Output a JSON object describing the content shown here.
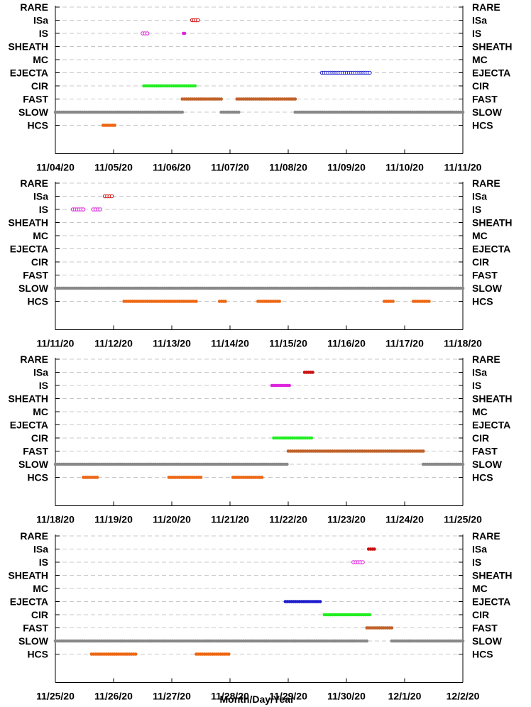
{
  "chart_data": {
    "type": "scatter",
    "xlabel": "Month/Day/Year",
    "categories": [
      "RARE",
      "ISa",
      "IS",
      "SHEATH",
      "MC",
      "EJECTA",
      "CIR",
      "FAST",
      "SLOW",
      "HCS"
    ],
    "colors": {
      "RARE": "#000000",
      "ISa": "#cc1111",
      "IS": "#dd22dd",
      "SHEATH": "#000000",
      "MC": "#000000",
      "EJECTA": "#1a1acc",
      "CIR": "#22ee22",
      "FAST": "#c0622a",
      "SLOW": "#888888",
      "HCS": "#ee6611"
    },
    "panels": [
      {
        "name": "panel-1",
        "x_range": [
          0,
          7
        ],
        "x_ticks": [
          "11/04/20",
          "11/05/20",
          "11/06/20",
          "11/07/20",
          "11/08/20",
          "11/09/20",
          "11/10/20",
          "11/11/20"
        ],
        "segments": [
          {
            "category": "ISa",
            "start": 2.35,
            "end": 2.45,
            "style": "open"
          },
          {
            "category": "IS",
            "start": 1.5,
            "end": 1.58,
            "style": "open"
          },
          {
            "category": "IS",
            "start": 2.2,
            "end": 2.22,
            "style": "filled"
          },
          {
            "category": "EJECTA",
            "start": 4.58,
            "end": 5.4,
            "style": "open"
          },
          {
            "category": "CIR",
            "start": 1.52,
            "end": 2.4,
            "style": "filled"
          },
          {
            "category": "FAST",
            "start": 2.18,
            "end": 2.85,
            "style": "filled"
          },
          {
            "category": "FAST",
            "start": 3.12,
            "end": 4.12,
            "style": "filled"
          },
          {
            "category": "SLOW",
            "start": 0.0,
            "end": 2.18,
            "style": "filled"
          },
          {
            "category": "SLOW",
            "start": 2.85,
            "end": 3.15,
            "style": "filled"
          },
          {
            "category": "SLOW",
            "start": 4.12,
            "end": 7.0,
            "style": "filled"
          },
          {
            "category": "HCS",
            "start": 0.82,
            "end": 1.02,
            "style": "filled"
          }
        ]
      },
      {
        "name": "panel-2",
        "x_range": [
          0,
          7
        ],
        "x_ticks": [
          "11/11/20",
          "11/12/20",
          "11/13/20",
          "11/14/20",
          "11/15/20",
          "11/16/20",
          "11/17/20",
          "11/18/20"
        ],
        "segments": [
          {
            "category": "ISa",
            "start": 0.85,
            "end": 0.97,
            "style": "open"
          },
          {
            "category": "IS",
            "start": 0.3,
            "end": 0.48,
            "style": "open"
          },
          {
            "category": "IS",
            "start": 0.65,
            "end": 0.77,
            "style": "open"
          },
          {
            "category": "SLOW",
            "start": 0.0,
            "end": 7.0,
            "style": "filled"
          },
          {
            "category": "HCS",
            "start": 1.18,
            "end": 2.42,
            "style": "filled"
          },
          {
            "category": "HCS",
            "start": 2.82,
            "end": 2.92,
            "style": "filled"
          },
          {
            "category": "HCS",
            "start": 3.48,
            "end": 3.85,
            "style": "filled"
          },
          {
            "category": "HCS",
            "start": 5.65,
            "end": 5.8,
            "style": "filled"
          },
          {
            "category": "HCS",
            "start": 6.15,
            "end": 6.42,
            "style": "filled"
          }
        ]
      },
      {
        "name": "panel-3",
        "x_range": [
          0,
          7
        ],
        "x_ticks": [
          "11/18/20",
          "11/19/20",
          "11/20/20",
          "11/21/20",
          "11/22/20",
          "11/23/20",
          "11/24/20",
          "11/25/20"
        ],
        "segments": [
          {
            "category": "ISa",
            "start": 4.28,
            "end": 4.42,
            "style": "filled"
          },
          {
            "category": "IS",
            "start": 3.72,
            "end": 4.02,
            "style": "filled"
          },
          {
            "category": "CIR",
            "start": 3.75,
            "end": 4.4,
            "style": "filled"
          },
          {
            "category": "FAST",
            "start": 4.0,
            "end": 6.32,
            "style": "filled"
          },
          {
            "category": "SLOW",
            "start": 0.0,
            "end": 3.98,
            "style": "filled"
          },
          {
            "category": "SLOW",
            "start": 6.32,
            "end": 7.0,
            "style": "filled"
          },
          {
            "category": "HCS",
            "start": 0.48,
            "end": 0.72,
            "style": "filled"
          },
          {
            "category": "HCS",
            "start": 1.95,
            "end": 2.5,
            "style": "filled"
          },
          {
            "category": "HCS",
            "start": 3.05,
            "end": 3.55,
            "style": "filled"
          }
        ]
      },
      {
        "name": "panel-4",
        "x_range": [
          0,
          7
        ],
        "x_ticks": [
          "11/25/20",
          "11/26/20",
          "11/27/20",
          "11/28/20",
          "11/29/20",
          "11/30/20",
          "12/1/20",
          "12/2/20"
        ],
        "segments": [
          {
            "category": "ISa",
            "start": 5.38,
            "end": 5.48,
            "style": "filled"
          },
          {
            "category": "IS",
            "start": 5.12,
            "end": 5.28,
            "style": "open"
          },
          {
            "category": "EJECTA",
            "start": 3.95,
            "end": 4.55,
            "style": "filled"
          },
          {
            "category": "CIR",
            "start": 4.62,
            "end": 5.4,
            "style": "filled"
          },
          {
            "category": "FAST",
            "start": 5.35,
            "end": 5.78,
            "style": "filled"
          },
          {
            "category": "SLOW",
            "start": 0.0,
            "end": 5.35,
            "style": "filled"
          },
          {
            "category": "SLOW",
            "start": 5.78,
            "end": 7.0,
            "style": "filled"
          },
          {
            "category": "HCS",
            "start": 0.62,
            "end": 1.38,
            "style": "filled"
          },
          {
            "category": "HCS",
            "start": 2.42,
            "end": 2.98,
            "style": "filled"
          }
        ]
      }
    ]
  }
}
